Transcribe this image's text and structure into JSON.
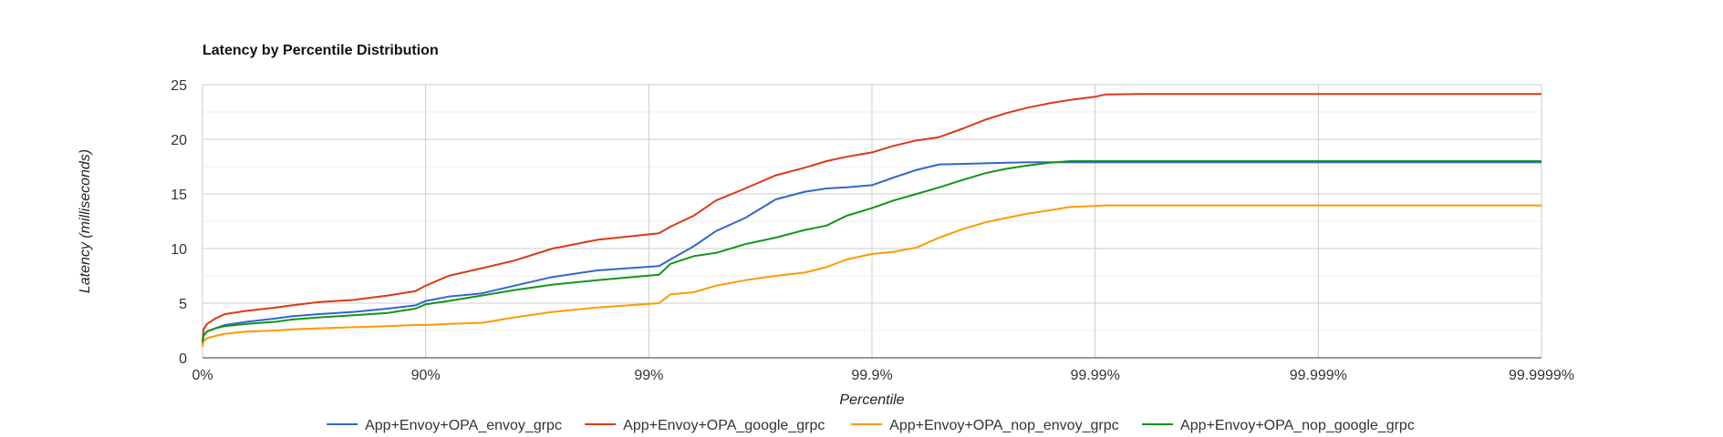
{
  "chart_data": {
    "type": "line",
    "title": "Latency by Percentile Distribution",
    "xlabel": "Percentile",
    "ylabel": "Latency (milliseconds)",
    "x_scale": "percentile-log",
    "x_ticks": [
      "0%",
      "90%",
      "99%",
      "99.9%",
      "99.99%",
      "99.999%",
      "99.9999%"
    ],
    "y_ticks": [
      "0",
      "5",
      "10",
      "15",
      "20",
      "25"
    ],
    "ylim": [
      0,
      25
    ],
    "grid": true,
    "legend_position": "bottom",
    "x": [
      "0%",
      "1.1%",
      "4.5%",
      "12.5%",
      "20.6%",
      "36.9%",
      "53.2%",
      "60.2%",
      "70.0%",
      "79.0%",
      "85.2%",
      "88.9%",
      "90%",
      "92.1%",
      "94.4%",
      "96.0%",
      "97.3%",
      "98.3%",
      "99.1%",
      "99.2%",
      "99.37%",
      "99.50%",
      "99.63%",
      "99.73%",
      "99.80%",
      "99.84%",
      "99.87%",
      "99.90%",
      "99.92%",
      "99.937%",
      "99.950%",
      "99.961%",
      "99.969%",
      "99.975%",
      "99.980%",
      "99.984%",
      "99.987%",
      "99.990%",
      "99.991%",
      "99.9937%",
      "99.9999%"
    ],
    "series": [
      {
        "name": "App+Envoy+OPA_envoy_grpc",
        "color": "#3366cc",
        "values": [
          1.3,
          2.0,
          2.4,
          2.7,
          3.0,
          3.3,
          3.6,
          3.8,
          4.0,
          4.2,
          4.5,
          4.8,
          5.2,
          5.6,
          5.9,
          6.6,
          7.4,
          8.0,
          8.4,
          9.0,
          10.2,
          11.6,
          12.8,
          14.5,
          15.2,
          15.5,
          15.6,
          15.8,
          16.5,
          17.2,
          17.7,
          17.75,
          17.8,
          17.85,
          17.9,
          17.9,
          17.9,
          17.9,
          17.9,
          17.9,
          17.9
        ]
      },
      {
        "name": "App+Envoy+OPA_google_grpc",
        "color": "#dc3912",
        "values": [
          1.4,
          2.6,
          3.1,
          3.6,
          4.0,
          4.3,
          4.6,
          4.8,
          5.1,
          5.3,
          5.7,
          6.1,
          6.6,
          7.5,
          8.2,
          8.9,
          10.0,
          10.8,
          11.4,
          12.0,
          13.0,
          14.4,
          15.5,
          16.7,
          17.4,
          18.0,
          18.4,
          18.8,
          19.4,
          19.9,
          20.2,
          21.0,
          21.8,
          22.4,
          22.9,
          23.3,
          23.6,
          23.9,
          24.1,
          24.15,
          24.15
        ]
      },
      {
        "name": "App+Envoy+OPA_nop_envoy_grpc",
        "color": "#ff9900",
        "values": [
          1.0,
          1.5,
          1.8,
          2.0,
          2.2,
          2.4,
          2.5,
          2.6,
          2.7,
          2.8,
          2.9,
          3.0,
          3.0,
          3.1,
          3.2,
          3.7,
          4.2,
          4.6,
          5.0,
          5.8,
          6.0,
          6.6,
          7.1,
          7.5,
          7.8,
          8.3,
          9.0,
          9.5,
          9.7,
          10.1,
          11.0,
          11.8,
          12.4,
          12.8,
          13.2,
          13.5,
          13.8,
          13.9,
          13.95,
          13.95,
          13.95
        ]
      },
      {
        "name": "App+Envoy+OPA_nop_google_grpc",
        "color": "#109618",
        "values": [
          1.5,
          2.1,
          2.4,
          2.7,
          2.9,
          3.1,
          3.3,
          3.5,
          3.7,
          3.9,
          4.1,
          4.5,
          4.9,
          5.2,
          5.7,
          6.2,
          6.7,
          7.1,
          7.6,
          8.6,
          9.3,
          9.6,
          10.4,
          11.0,
          11.7,
          12.1,
          13.0,
          13.7,
          14.4,
          15.0,
          15.6,
          16.3,
          16.9,
          17.3,
          17.6,
          17.85,
          18.0,
          18.0,
          18.0,
          18.0,
          18.0
        ]
      }
    ]
  }
}
